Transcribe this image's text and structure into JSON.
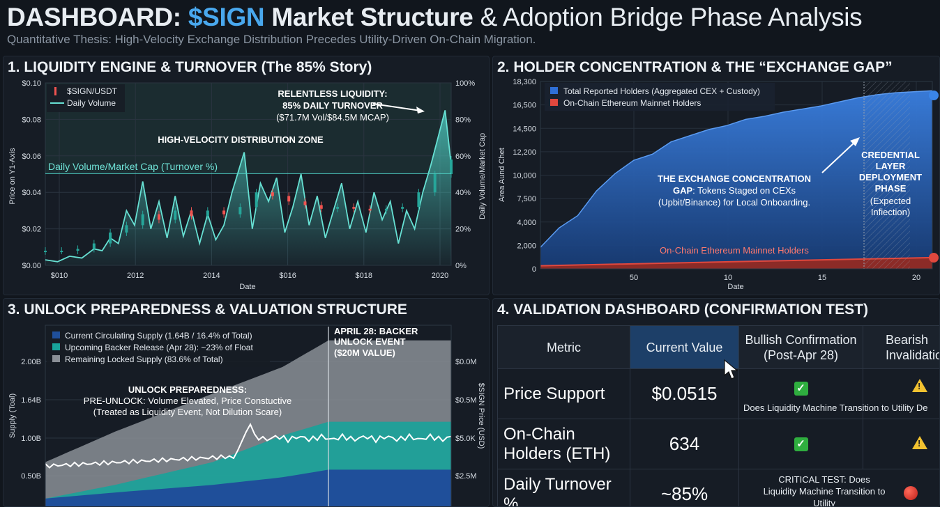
{
  "header": {
    "title_prefix": "DASHBOARD:",
    "title_accent": "$SIGN",
    "title_bold": "Market Structure",
    "title_rest": "& Adoption Bridge Phase Analysis",
    "subtitle": "Quantitative Thesis: High-Velocity Exchange Distribution Precedes Utility-Driven On-Chain Migration."
  },
  "colors": {
    "accent": "#49a8ee",
    "teal": "#4fd1c5",
    "candle_up": "#26a69a",
    "candle_down": "#ef5350",
    "holders_blue": "#2f6fd6",
    "onchain_red": "#e0483e",
    "circ_blue": "#1f4f9a",
    "backer_teal": "#18a39a",
    "locked_gray": "#8a8f96"
  },
  "panel1": {
    "title": "1. LIQUIDITY ENGINE & TURNOVER (The 85% Story)",
    "y_axis_label": "Price on Y1-Axis",
    "y2_axis_label": "Daily Volume/Market Cap",
    "x_axis_label": "Date",
    "y_ticks": [
      "$0.10",
      "$0.08",
      "$0.06",
      "$0.04",
      "$0.02",
      "$0.00"
    ],
    "y2_ticks": [
      "100%",
      "80%",
      "60%",
      "40%",
      "20%",
      "0%"
    ],
    "x_ticks": [
      "$010",
      "2012",
      "2014",
      "$016",
      "$018",
      "2020"
    ],
    "legend": [
      "$SIGN/USDT",
      "Daily Volume"
    ],
    "zone_label": "HIGH-VELOCITY DISTRIBUTION ZONE",
    "turnover_line_label": "Daily Volume/Market Cap (Turnover %)",
    "annotation_line1": "RELENTLESS LIQUIDITY:",
    "annotation_line2": "85% DAILY TURNOVER",
    "annotation_line3": "($71.7M Vol/$84.5M MCAP)"
  },
  "panel2": {
    "title": "2. HOLDER CONCENTRATION & THE “EXCHANGE GAP”",
    "y_axis_label": "Area Aund Chet",
    "x_axis_label": "Date",
    "y_ticks": [
      "18,300",
      "16,500",
      "14,500",
      "12,200",
      "10,000",
      "7,500",
      "4,000",
      "2,000",
      "0"
    ],
    "x_ticks": [
      "50",
      "10",
      "15",
      "20"
    ],
    "legend": [
      "Total Reported Holders (Aggregated CEX + Custody)",
      "On-Chain Ethereum Mainnet Holders"
    ],
    "onchain_label": "On-Chain Ethereum Mainnet Holders",
    "gap_title": "THE EXCHANGE CONCENTRATION",
    "gap_line2_bold": "GAP",
    "gap_line2_rest": ": Tokens Staged on CEXs",
    "gap_line3": "(Upbit/Binance) for Local Onboarding.",
    "phase_lines": [
      "CREDENTIAL",
      "LAYER",
      "DEPLOYMENT",
      "PHASE"
    ],
    "phase_sub": [
      "(Expected",
      "Infiection)"
    ]
  },
  "panel3": {
    "title": "3. UNLOCK PREPAREDNESS & VALUATION STRUCTURE",
    "y_axis_label": "Supply (Toal)",
    "y2_axis_label": "$SIGN Price (USD)",
    "y_ticks": [
      "2.00B",
      "1.64B",
      "1.00B",
      "0.50B"
    ],
    "y2_ticks": [
      "$0.0M",
      "$0.5M",
      "$5.0K",
      "$2.5M"
    ],
    "legend": [
      "Current Circulating Supply (1.64B / 16.4% of Total)",
      "Upcoming Backer Release (Apr 28): ~23% of Float",
      "Remaining Locked Supply (83.6% of Total)"
    ],
    "event_lines": [
      "APRIL 28: BACKER",
      "UNLOCK EVENT",
      "($20M VALUE)"
    ],
    "prep_line1": "UNLOCK PREPAREDNESS:",
    "prep_line2": "PRE-UNLOCK: Volume Elevated, Price Constuctive",
    "prep_line3": "(Treated as Liquidity Event, Not Dilution Scare)"
  },
  "panel4": {
    "title": "4. VALIDATION DASHBOARD (CONFIRMATION TEST)",
    "columns": [
      "Metric",
      "Current Value",
      "Bullish Confirmation (Post-Apr 28)",
      "Bearish Invalidation"
    ],
    "rows": [
      {
        "metric": "Price Support",
        "value": "$0.0515",
        "note": "Does Liquidity Machine Transition to Utility De"
      },
      {
        "metric": "On-Chain Holders (ETH)",
        "value": "634",
        "note": ""
      },
      {
        "metric": "Daily Turnover %",
        "value": "~85%",
        "note": "CRITICAL TEST: Does Liquidity Machine Transition to Utility"
      }
    ]
  },
  "chart_data": [
    {
      "type": "line",
      "title": "1. LIQUIDITY ENGINE & TURNOVER (The 85% Story)",
      "xlabel": "Date",
      "ylabel": "Price on Y1-Axis",
      "y2label": "Daily Volume/Market Cap",
      "xlim": [
        2010,
        2020
      ],
      "ylim": [
        0,
        0.1
      ],
      "y2lim": [
        0,
        100
      ],
      "turnover_threshold_pct": 50,
      "series": [
        {
          "name": "Daily Volume",
          "axis": "y2",
          "x": [
            2010.0,
            2010.3,
            2010.6,
            2010.9,
            2011.2,
            2011.4,
            2011.6,
            2011.8,
            2012.0,
            2012.2,
            2012.4,
            2012.6,
            2012.8,
            2013.0,
            2013.2,
            2013.4,
            2013.6,
            2013.8,
            2014.0,
            2014.2,
            2014.4,
            2014.6,
            2014.9,
            2015.1,
            2015.3,
            2015.5,
            2015.7,
            2015.9,
            2016.1,
            2016.3,
            2016.5,
            2016.7,
            2016.9,
            2017.1,
            2017.3,
            2017.5,
            2017.7,
            2017.9,
            2018.1,
            2018.3,
            2018.5,
            2018.7,
            2018.9,
            2019.1,
            2019.3,
            2019.5,
            2019.7,
            2019.85,
            2020.0
          ],
          "values": [
            3,
            2,
            5,
            4,
            9,
            8,
            15,
            12,
            30,
            22,
            46,
            20,
            35,
            15,
            38,
            16,
            30,
            12,
            28,
            14,
            22,
            40,
            62,
            20,
            45,
            35,
            48,
            18,
            32,
            50,
            22,
            38,
            15,
            30,
            45,
            20,
            35,
            18,
            40,
            25,
            35,
            12,
            30,
            20,
            40,
            55,
            72,
            85,
            55
          ]
        },
        {
          "name": "$SIGN/USDT",
          "axis": "y",
          "type": "candlestick",
          "x": [
            2010.0,
            2010.4,
            2010.8,
            2011.2,
            2011.6,
            2012.0,
            2012.4,
            2012.8,
            2013.2,
            2013.6,
            2014.0,
            2014.4,
            2014.8,
            2015.2,
            2015.6,
            2016.0,
            2016.4,
            2016.8,
            2017.2,
            2017.6,
            2018.0,
            2018.4,
            2018.8,
            2019.2,
            2019.6,
            2020.0
          ],
          "close": [
            0.008,
            0.008,
            0.009,
            0.012,
            0.018,
            0.022,
            0.028,
            0.025,
            0.03,
            0.027,
            0.03,
            0.028,
            0.032,
            0.04,
            0.038,
            0.035,
            0.033,
            0.031,
            0.032,
            0.031,
            0.03,
            0.031,
            0.032,
            0.04,
            0.05,
            0.058
          ]
        }
      ],
      "annotations": [
        "RELENTLESS LIQUIDITY: 85% DAILY TURNOVER ($71.7M Vol/$84.5M MCAP)",
        "HIGH-VELOCITY DISTRIBUTION ZONE"
      ]
    },
    {
      "type": "area",
      "title": "2. HOLDER CONCENTRATION & THE “EXCHANGE GAP”",
      "xlabel": "Date",
      "ylim": [
        0,
        18300
      ],
      "series": [
        {
          "name": "Total Reported Holders (Aggregated CEX + Custody)",
          "x": [
            0,
            1,
            2,
            3,
            4,
            5,
            6,
            7,
            8,
            9,
            10,
            11,
            12,
            13,
            14,
            15,
            16,
            17,
            18,
            19,
            20,
            21
          ],
          "values": [
            2100,
            4000,
            5200,
            7600,
            9300,
            10600,
            11200,
            12400,
            13000,
            13600,
            14000,
            14600,
            14900,
            15300,
            15600,
            15900,
            16300,
            16700,
            17000,
            17200,
            17300,
            17400
          ]
        },
        {
          "name": "On-Chain Ethereum Mainnet Holders",
          "x": [
            0,
            21
          ],
          "values": [
            300,
            1100
          ]
        }
      ],
      "annotations": [
        "CREDENTIAL LAYER DEPLOYMENT PHASE (Expected Infiection)"
      ]
    },
    {
      "type": "area",
      "title": "3. UNLOCK PREPAREDNESS & VALUATION STRUCTURE",
      "ylabel": "Supply (Toal)",
      "y2label": "$SIGN Price (USD)",
      "ylim": [
        0,
        2.4
      ],
      "series": [
        {
          "name": "Current Circulating Supply",
          "values": [
            0.12,
            0.2,
            0.3,
            0.4,
            0.5,
            0.5
          ]
        },
        {
          "name": "Upcoming Backer Release (Apr 28)",
          "values": [
            0.12,
            0.3,
            0.6,
            0.95,
            1.13,
            1.13
          ]
        },
        {
          "name": "Remaining Locked Supply",
          "values": [
            0.6,
            1.0,
            1.5,
            1.85,
            2.2,
            2.2
          ]
        }
      ],
      "annotations": [
        "APRIL 28: BACKER UNLOCK EVENT ($20M VALUE)"
      ]
    }
  ]
}
